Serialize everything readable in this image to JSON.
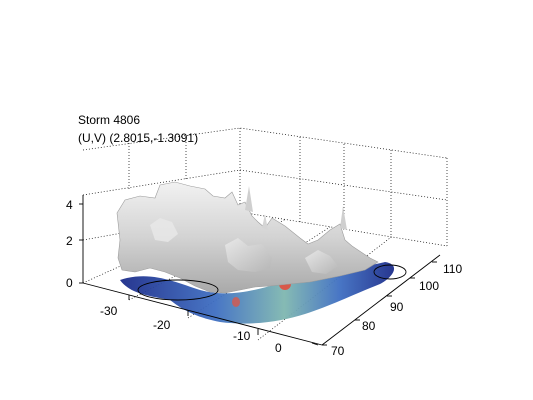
{
  "chart_data": {
    "type": "surface",
    "title_line1": "Storm 4806",
    "title_line2": "(U,V) (2.8015,-1.3091)",
    "axes": {
      "x_ticks": [
        "-30",
        "-20",
        "-10",
        "0"
      ],
      "y_ticks": [
        "70",
        "80",
        "90",
        "100",
        "110"
      ],
      "z_ticks": [
        "0",
        "2",
        "4"
      ],
      "grid": true
    },
    "colors": {
      "isosurface": "#d9d9d9",
      "ground_dark": "#1c2c8a",
      "ground_mid": "#3f6fc2",
      "ground_light": "#7fb7b0",
      "core": "#d9584a"
    }
  }
}
